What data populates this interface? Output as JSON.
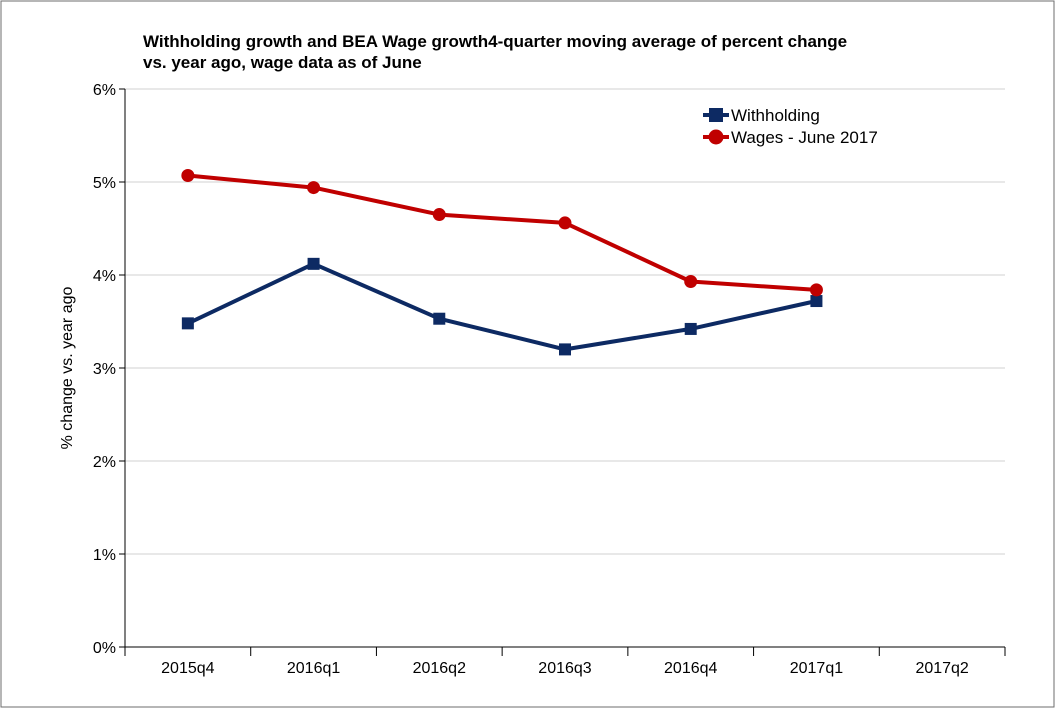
{
  "chart_data": {
    "type": "line",
    "title_lines": [
      "Withholding growth and BEA Wage growth4-quarter moving average of percent change",
      "vs. year ago, wage data as of June"
    ],
    "xlabel": "",
    "ylabel": "% change vs. year ago",
    "categories": [
      "2015q4",
      "2016q1",
      "2016q2",
      "2016q3",
      "2016q4",
      "2017q1",
      "2017q2"
    ],
    "ylim": [
      0,
      6
    ],
    "yticks": [
      0,
      1,
      2,
      3,
      4,
      5,
      6
    ],
    "ytick_labels": [
      "0%",
      "1%",
      "2%",
      "3%",
      "4%",
      "5%",
      "6%"
    ],
    "grid": "horizontal",
    "legend_position": "top-right",
    "series": [
      {
        "name": "Withholding",
        "color": "#0d2a63",
        "marker": "square",
        "values": [
          3.48,
          4.12,
          3.53,
          3.2,
          3.42,
          3.72,
          null
        ]
      },
      {
        "name": "Wages - June 2017",
        "color": "#c00000",
        "marker": "circle",
        "values": [
          5.07,
          4.94,
          4.65,
          4.56,
          3.93,
          3.84,
          null
        ]
      }
    ]
  }
}
